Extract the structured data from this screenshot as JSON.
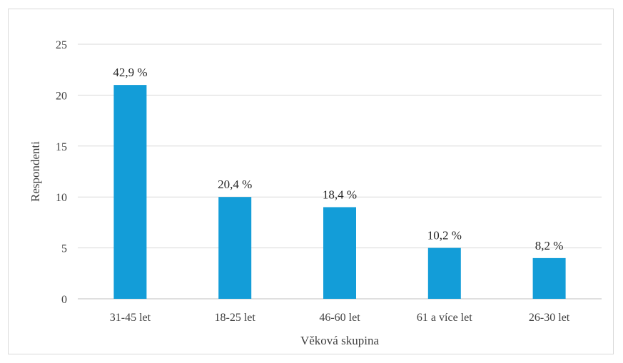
{
  "chart_data": {
    "type": "bar",
    "title": "",
    "xlabel": "Věková skupina",
    "ylabel": "Respondenti",
    "categories": [
      "31-45 let",
      "18-25 let",
      "46-60 let",
      "61 a více let",
      "26-30 let"
    ],
    "values": [
      21,
      10,
      9,
      5,
      4
    ],
    "data_labels": [
      "42,9 %",
      "20,4 %",
      "18,4 %",
      "10,2 %",
      "8,2 %"
    ],
    "ylim": [
      0,
      25
    ],
    "yticks": [
      0,
      5,
      10,
      15,
      20,
      25
    ],
    "grid": true,
    "legend": "none",
    "colors": {
      "bar": "#139dd8",
      "grid": "#d9d9d9",
      "axis": "#bfbfbf",
      "text": "#404040"
    }
  }
}
